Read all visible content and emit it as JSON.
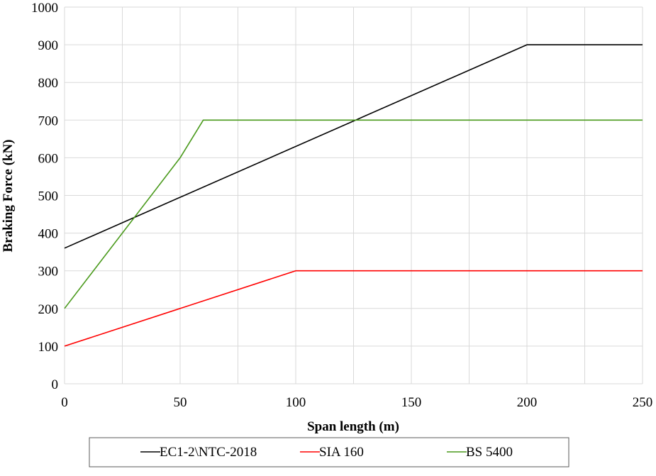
{
  "chart_data": {
    "type": "line",
    "title": "",
    "xlabel": "Span length (m)",
    "ylabel": "Braking Force (kN)",
    "xlim": [
      0,
      250
    ],
    "ylim": [
      0,
      1000
    ],
    "x_ticks": [
      "0",
      "50",
      "100",
      "150",
      "200",
      "250"
    ],
    "y_ticks": [
      "0",
      "100",
      "200",
      "300",
      "400",
      "500",
      "600",
      "700",
      "800",
      "900",
      "1000"
    ],
    "grid": true,
    "legend_position": "bottom",
    "series": [
      {
        "name": "EC1-2\\NTC-2018",
        "color": "#000000",
        "x": [
          0,
          200,
          250
        ],
        "y": [
          360,
          900,
          900
        ]
      },
      {
        "name": "SIA 160",
        "color": "#ff0000",
        "x": [
          0,
          100,
          250
        ],
        "y": [
          100,
          300,
          300
        ]
      },
      {
        "name": "BS 5400",
        "color": "#4a9a1c",
        "x": [
          0,
          50,
          60,
          250
        ],
        "y": [
          200,
          600,
          700,
          700
        ]
      }
    ]
  }
}
